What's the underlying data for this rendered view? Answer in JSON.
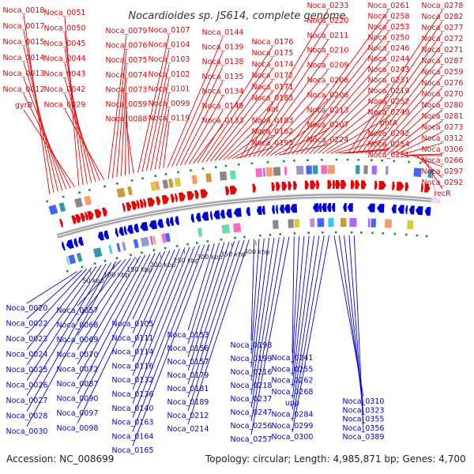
{
  "title": "Nocardioides sp. JS614, complete genome",
  "footer": {
    "accession": "Accession: NC_008699",
    "summary": "Topology: circular; Length: 4,985,871 bp; Genes: 4,700"
  },
  "colors": {
    "forward": "#ee0000",
    "reverse": "#0000dd",
    "backbone": "#8f8f8f",
    "rna": "#ff88ff",
    "cog_marker": "#119911"
  },
  "scale_ticks": [
    "50 kbp",
    "100 kbp",
    "150 kbp",
    "200 kbp",
    "250 kbp",
    "300 kbp",
    "350 kbp",
    "400 kbp"
  ],
  "forward_labels": [
    "Noca_0018",
    "Noca_0017",
    "Noca_0015",
    "Noca_0014",
    "Noca_0013",
    "Noca_0012",
    "gyrB",
    "Noca_0051",
    "Noca_0050",
    "Noca_0045",
    "Noca_0044",
    "Noca_0043",
    "Noca_0042",
    "Noca_0029",
    "Noca_0079",
    "Noca_0076",
    "Noca_0075",
    "Noca_0074",
    "Noca_0073",
    "Noca_0059",
    "Noca_0088",
    "Noca_0107",
    "Noca_0104",
    "Noca_0103",
    "Noca_0102",
    "Noca_0101",
    "Noca_0099",
    "Noca_0119",
    "Noca_0144",
    "Noca_0139",
    "Noca_0138",
    "Noca_0135",
    "Noca_0134",
    "Noca_0149",
    "Noca_0133",
    "Noca_0176",
    "Noca_0175",
    "Noca_0174",
    "Noca_0172",
    "Noca_0171",
    "Noca_0185",
    "aat",
    "Noca_0183",
    "Noca_0162",
    "Noca_0195",
    "Noca_0233",
    "Noca_0220",
    "Noca_0211",
    "Noca_0210",
    "Noca_0209",
    "Noca_0208",
    "Noca_0206",
    "Noca_0213",
    "Noca_0207",
    "Noca_0224",
    "Noca_0261",
    "Noca_0258",
    "Noca_0253",
    "Noca_0250",
    "Noca_0246",
    "Noca_0244",
    "Noca_0243",
    "Noca_0231",
    "Noca_0219",
    "Noca_0252",
    "Noca_0249",
    "pntA",
    "Noca_0242",
    "Noca_0254",
    "Noca_0251",
    "Noca_0278",
    "Noca_0282",
    "Noca_0277",
    "Noca_0272",
    "Noca_0271",
    "Noca_0287",
    "Noca_0259",
    "Noca_0276",
    "Noca_0270",
    "Noca_0280",
    "Noca_0281",
    "Noca_0273",
    "Noca_0312",
    "Noca_0306",
    "Noca_0266",
    "Noca_0297",
    "Noca_0292",
    "recR"
  ],
  "rna_labels": [
    "ffs"
  ],
  "reverse_labels": [
    "Noca_0020",
    "Noca_0022",
    "Noca_0023",
    "Noca_0024",
    "Noca_0025",
    "Noca_0026",
    "Noca_0027",
    "Noca_0028",
    "Noca_0030",
    "Noca_0057",
    "Noca_0068",
    "Noca_0069",
    "Noca_0070",
    "Noca_0072",
    "Noca_0087",
    "Noca_0090",
    "Noca_0097",
    "Noca_0098",
    "Noca_0105",
    "Noca_0111",
    "Noca_0114",
    "Noca_0116",
    "Noca_0132",
    "Noca_0136",
    "Noca_0140",
    "Noca_0163",
    "Noca_0164",
    "Noca_0165",
    "Noca_0153",
    "Noca_0156",
    "Noca_0157",
    "Noca_0179",
    "Noca_0181",
    "Noca_0189",
    "Noca_0212",
    "Noca_0214",
    "Noca_0198",
    "Noca_0199",
    "Noca_0216",
    "Noca_0218",
    "Noca_0237",
    "Noca_0247",
    "Noca_0256",
    "Noca_0257",
    "Noca_0241",
    "Noca_0255",
    "Noca_0262",
    "Noca_0268",
    "upp",
    "Noca_0284",
    "Noca_0299",
    "Noca_0300",
    "Noca_0310",
    "Noca_0323",
    "Noca_0355",
    "Noca_0356",
    "Noca_0389"
  ]
}
